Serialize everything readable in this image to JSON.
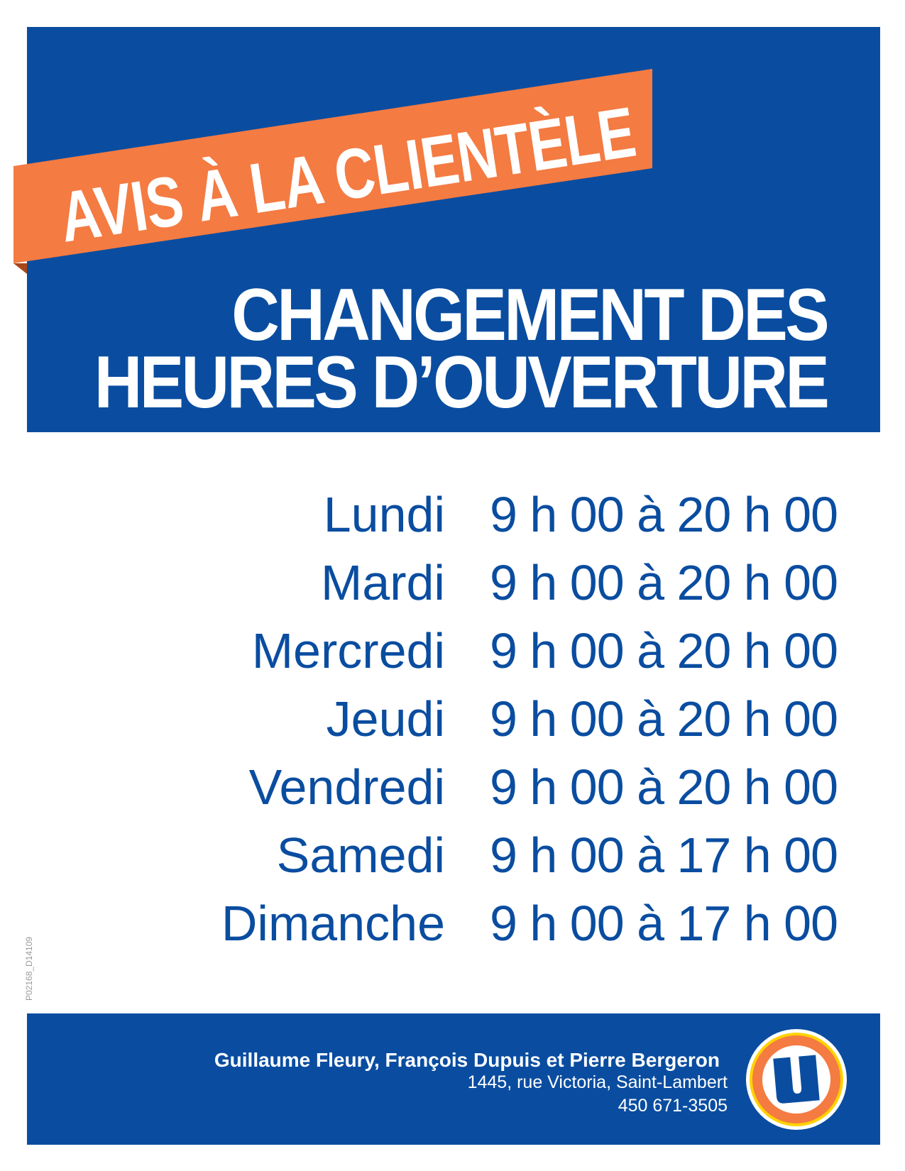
{
  "banner": {
    "text": "AVIS À LA CLIENTÈLE"
  },
  "title": {
    "line1": "CHANGEMENT DES",
    "line2": "HEURES D’OUVERTURE"
  },
  "hours": [
    {
      "day": "Lundi",
      "time": "9 h 00 à 20 h 00"
    },
    {
      "day": "Mardi",
      "time": "9 h 00 à 20 h 00"
    },
    {
      "day": "Mercredi",
      "time": "9 h 00 à 20 h 00"
    },
    {
      "day": "Jeudi",
      "time": "9 h 00 à 20 h 00"
    },
    {
      "day": "Vendredi",
      "time": "9 h 00 à 20 h 00"
    },
    {
      "day": "Samedi",
      "time": "9 h 00 à 17 h 00"
    },
    {
      "day": "Dimanche",
      "time": "9 h 00 à 17 h 00"
    }
  ],
  "footer": {
    "owners": "Guillaume Fleury, François Dupuis et Pierre Bergeron",
    "address": "1445, rue Victoria, Saint-Lambert",
    "phone": "450 671-3505",
    "logo": {
      "letter": "U",
      "icon": "uniprix-u-logo"
    }
  },
  "document_code": "P02168_D14109",
  "colors": {
    "blue": "#0a4da0",
    "orange": "#f47b42",
    "yellow": "#ffd200"
  }
}
